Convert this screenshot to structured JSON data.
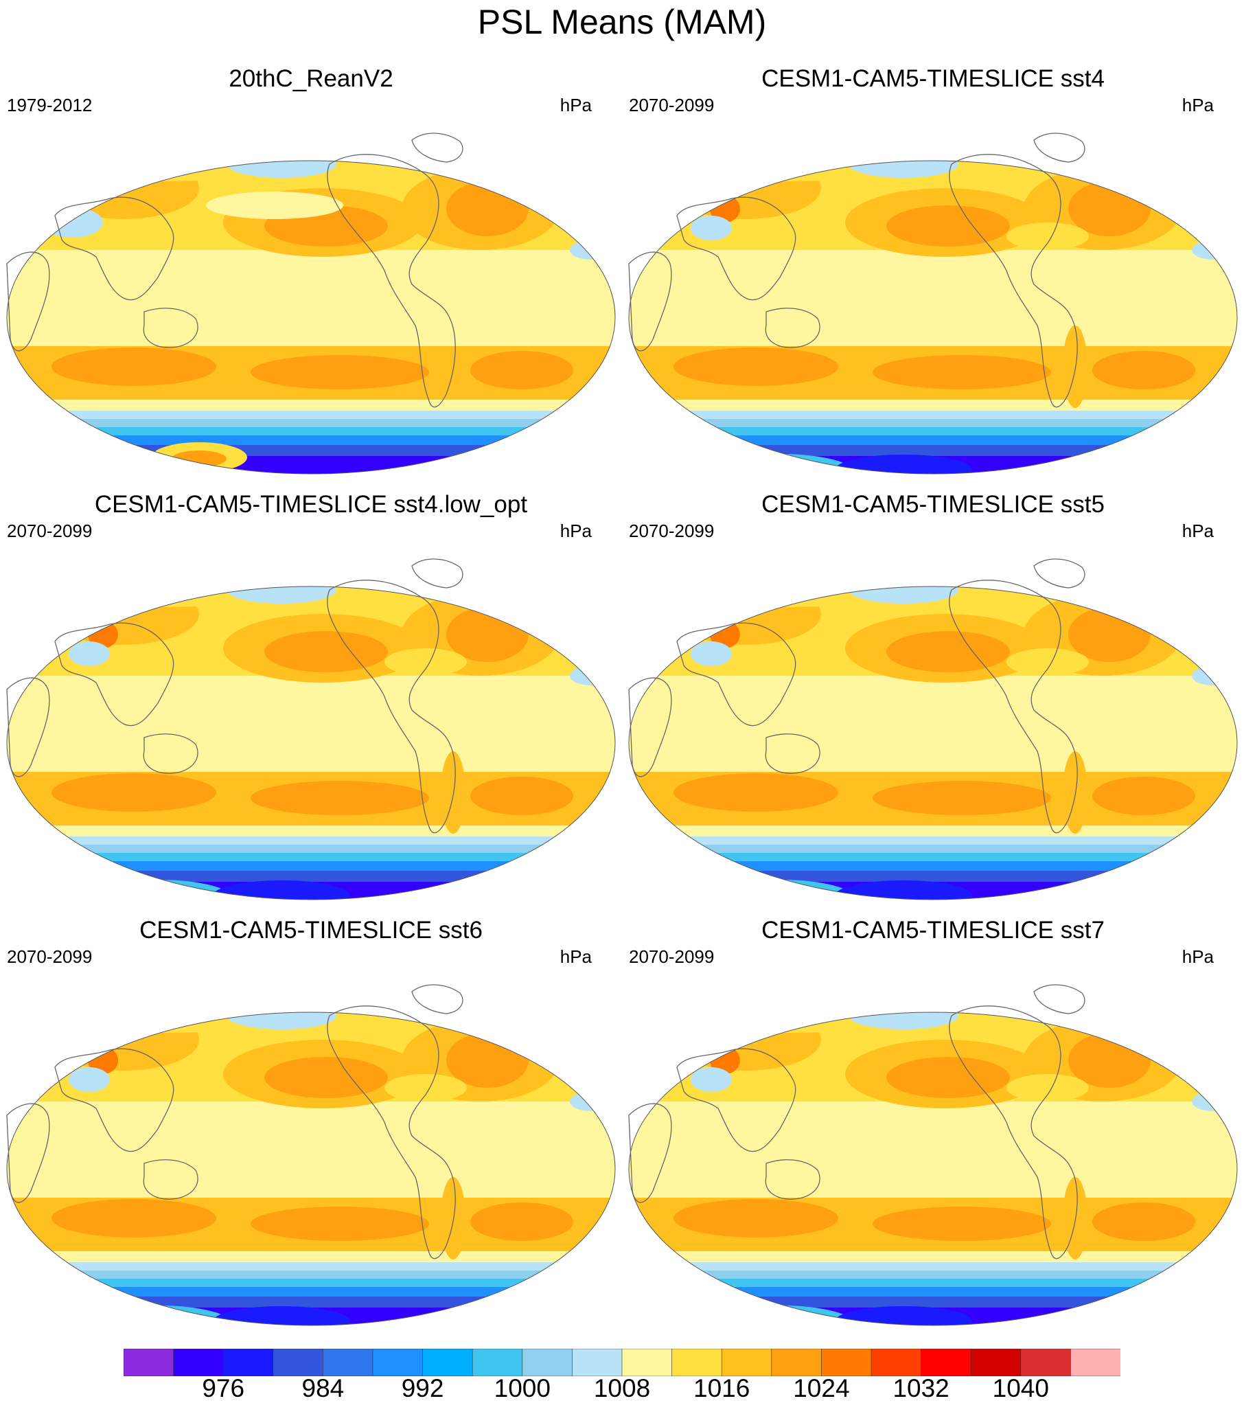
{
  "title": "PSL Means (MAM)",
  "panels": [
    {
      "title": "20thC_ReanV2",
      "period": "1979-2012",
      "units": "hPa",
      "variant": "obs"
    },
    {
      "title": "CESM1-CAM5-TIMESLICE sst4",
      "period": "2070-2099",
      "units": "hPa",
      "variant": "model"
    },
    {
      "title": "CESM1-CAM5-TIMESLICE sst4.low_opt",
      "period": "2070-2099",
      "units": "hPa",
      "variant": "model"
    },
    {
      "title": "CESM1-CAM5-TIMESLICE sst5",
      "period": "2070-2099",
      "units": "hPa",
      "variant": "model"
    },
    {
      "title": "CESM1-CAM5-TIMESLICE sst6",
      "period": "2070-2099",
      "units": "hPa",
      "variant": "model"
    },
    {
      "title": "CESM1-CAM5-TIMESLICE sst7",
      "period": "2070-2099",
      "units": "hPa",
      "variant": "model"
    }
  ],
  "colorbar": {
    "colors": [
      "#8a2be2",
      "#3300ff",
      "#1a1aff",
      "#3355dd",
      "#2f75ee",
      "#1e90ff",
      "#00b0ff",
      "#40c4f0",
      "#90cfee",
      "#b8e2f7",
      "#fff7a0",
      "#ffe040",
      "#ffc020",
      "#ffa010",
      "#ff7a00",
      "#ff4000",
      "#ff0000",
      "#d40000",
      "#dc3030",
      "#ffb0b0"
    ],
    "labels": [
      "976",
      "984",
      "992",
      "1000",
      "1008",
      "1016",
      "1024",
      "1032",
      "1040"
    ]
  }
}
